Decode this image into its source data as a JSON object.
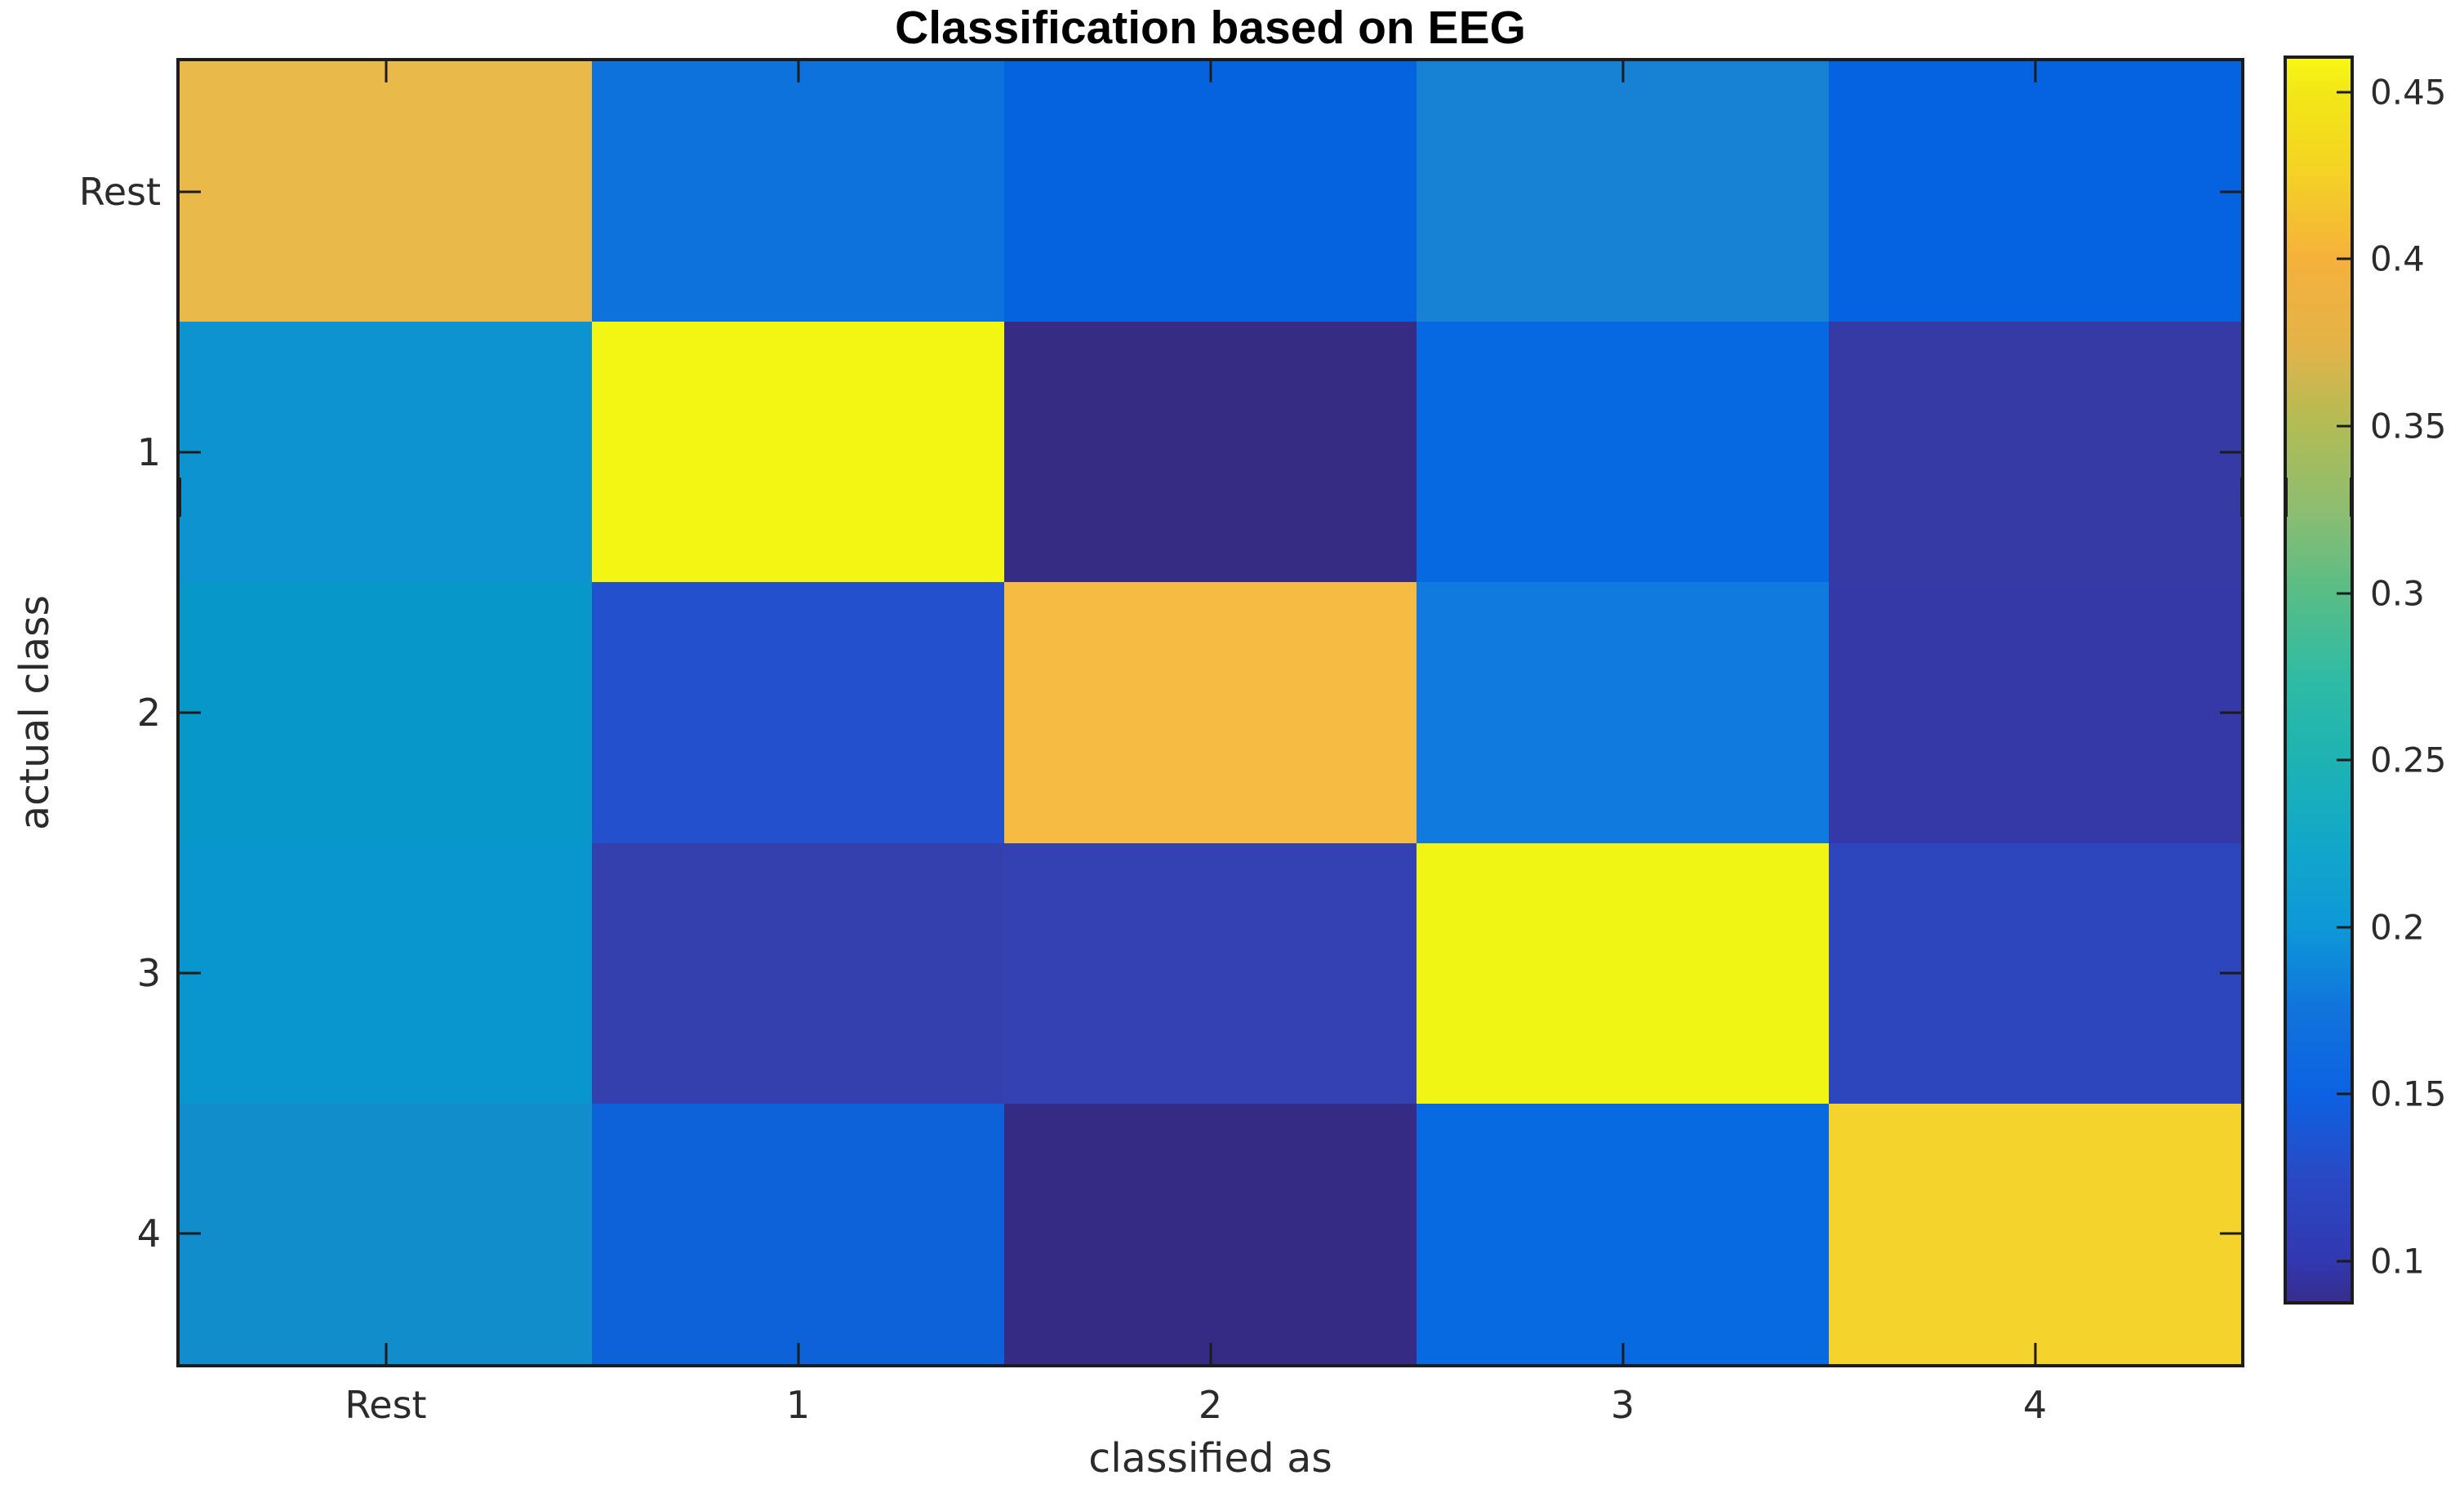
{
  "figure": {
    "background": "#ffffff"
  },
  "chart_data": {
    "type": "heatmap",
    "title": "Classification based on EEG",
    "xlabel": "classified as",
    "ylabel": "actual class",
    "x_categories": [
      "Rest",
      "1",
      "2",
      "3",
      "4"
    ],
    "y_categories": [
      "Rest",
      "1",
      "2",
      "3",
      "4"
    ],
    "matrix": [
      [
        0.405,
        0.165,
        0.15,
        0.18,
        0.15
      ],
      [
        0.195,
        0.46,
        0.088,
        0.155,
        0.105
      ],
      [
        0.2,
        0.13,
        0.41,
        0.17,
        0.1
      ],
      [
        0.2,
        0.105,
        0.11,
        0.46,
        0.115
      ],
      [
        0.19,
        0.15,
        0.088,
        0.155,
        0.43
      ]
    ],
    "cell_colors": [
      [
        "#e9ba4a",
        "#0e72dc",
        "#0663e0",
        "#1781d3",
        "#0562e0"
      ],
      [
        "#0d93cf",
        "#f3f513",
        "#362c83",
        "#0769e2",
        "#363aa4"
      ],
      [
        "#0798c9",
        "#2351ce",
        "#f5bb42",
        "#107ade",
        "#3439a7"
      ],
      [
        "#0995cd",
        "#3440ae",
        "#3441b2",
        "#f1f513",
        "#2e46bd"
      ],
      [
        "#128dcc",
        "#0d62da",
        "#352b85",
        "#086ae1",
        "#f3d32c"
      ]
    ],
    "colormap": "parula",
    "clim": [
      0.088,
      0.46
    ],
    "grid": "off",
    "legend": "none",
    "colorbar": {
      "position": "right",
      "ticks": [
        0.45,
        0.4,
        0.35,
        0.3,
        0.25,
        0.2,
        0.15,
        0.1
      ],
      "tick_labels": [
        "0.45",
        "0.4",
        "0.35",
        "0.3",
        "0.25",
        "0.2",
        "0.15",
        "0.1"
      ],
      "gradient_stops": [
        {
          "pos": 0,
          "color": "#f9f716"
        },
        {
          "pos": 2.7,
          "color": "#f2e716"
        },
        {
          "pos": 9,
          "color": "#f4d324"
        },
        {
          "pos": 16.1,
          "color": "#f5b13c"
        },
        {
          "pos": 23,
          "color": "#e3b349"
        },
        {
          "pos": 29.6,
          "color": "#b1bc55"
        },
        {
          "pos": 36.3,
          "color": "#8dbd71"
        },
        {
          "pos": 43,
          "color": "#57bd86"
        },
        {
          "pos": 50,
          "color": "#2fbba5"
        },
        {
          "pos": 56.5,
          "color": "#1db3b3"
        },
        {
          "pos": 63.2,
          "color": "#13a7c9"
        },
        {
          "pos": 69.9,
          "color": "#0d98d8"
        },
        {
          "pos": 76.6,
          "color": "#1173dc"
        },
        {
          "pos": 83.3,
          "color": "#0c62e2"
        },
        {
          "pos": 90,
          "color": "#2a49c5"
        },
        {
          "pos": 96.8,
          "color": "#3138b0"
        },
        {
          "pos": 100,
          "color": "#372d8d"
        }
      ]
    },
    "axis_color": "#1c1c1c",
    "tick_label_color": "#2b2b2b"
  }
}
